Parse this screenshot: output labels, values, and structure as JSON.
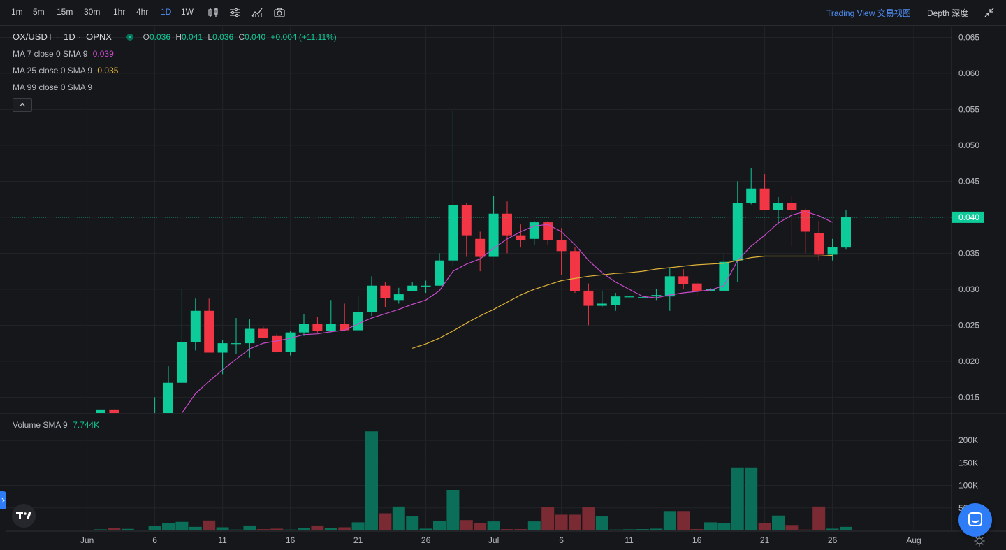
{
  "toolbar": {
    "timeframes": [
      "1m",
      "5m",
      "15m",
      "30m",
      "1hr",
      "4hr",
      "1D",
      "1W"
    ],
    "active_timeframe": "1D",
    "trading_view_label": "Trading View 交易视图",
    "depth_label": "Depth 深度",
    "icons": [
      "candle-type-icon",
      "indicators-icon",
      "studies-icon",
      "camera-icon"
    ]
  },
  "legend": {
    "symbol": "OX/USDT",
    "interval": "1D",
    "exchange": "OPNX",
    "open_label": "O",
    "open": "0.036",
    "high_label": "H",
    "high": "0.041",
    "low_label": "L",
    "low": "0.036",
    "close_label": "C",
    "close": "0.040",
    "change": "+0.004 (+11.11%)",
    "ma7_label": "MA 7 close 0 SMA 9",
    "ma7_value": "0.039",
    "ma25_label": "MA 25 close 0 SMA 9",
    "ma25_value": "0.035",
    "ma99_label": "MA 99 close 0 SMA 9",
    "volume_label": "Volume SMA 9",
    "volume_value": "7.744K"
  },
  "colors": {
    "up": "#0ecb9a",
    "down": "#f23645",
    "vol_up": "#0a6e58",
    "vol_down": "#7a2a33",
    "ma7": "#c64ac9",
    "ma25": "#e0b33a",
    "accent": "#4f8ef7",
    "bg": "#16171a",
    "grid": "#222428"
  },
  "chart_data": {
    "type": "candlestick",
    "price_axis_ticks": [
      "0.065",
      "0.060",
      "0.055",
      "0.050",
      "0.045",
      "0.040",
      "0.035",
      "0.030",
      "0.025",
      "0.020",
      "0.015"
    ],
    "price_ylim": [
      0.0128,
      0.0665
    ],
    "last_price_label": "0.040",
    "volume_axis_ticks": [
      "200K",
      "150K",
      "100K",
      "50K"
    ],
    "volume_ylim": [
      0,
      225000
    ],
    "x_labels": [
      {
        "i": -1,
        "label": "Jun"
      },
      {
        "i": 4,
        "label": "6"
      },
      {
        "i": 9,
        "label": "11"
      },
      {
        "i": 14,
        "label": "16"
      },
      {
        "i": 19,
        "label": "21"
      },
      {
        "i": 24,
        "label": "26"
      },
      {
        "i": 29,
        "label": "Jul"
      },
      {
        "i": 34,
        "label": "6"
      },
      {
        "i": 39,
        "label": "11"
      },
      {
        "i": 44,
        "label": "16"
      },
      {
        "i": 49,
        "label": "21"
      },
      {
        "i": 54,
        "label": "26"
      },
      {
        "i": 60,
        "label": "Aug"
      }
    ],
    "candles": [
      {
        "o": 0.0128,
        "h": 0.0133,
        "l": 0.0128,
        "c": 0.0133,
        "v": 2500
      },
      {
        "o": 0.0133,
        "h": 0.0133,
        "l": 0.0128,
        "c": 0.0128,
        "v": 5000
      },
      {
        "o": 0.0128,
        "h": 0.0128,
        "l": 0.0128,
        "c": 0.0128,
        "v": 3500
      },
      {
        "o": 0.0128,
        "h": 0.0128,
        "l": 0.0128,
        "c": 0.0128,
        "v": 1500
      },
      {
        "o": 0.0128,
        "h": 0.015,
        "l": 0.0128,
        "c": 0.0128,
        "v": 10000
      },
      {
        "o": 0.0128,
        "h": 0.0193,
        "l": 0.0128,
        "c": 0.017,
        "v": 16000
      },
      {
        "o": 0.017,
        "h": 0.03,
        "l": 0.017,
        "c": 0.0227,
        "v": 19000
      },
      {
        "o": 0.0227,
        "h": 0.0287,
        "l": 0.0215,
        "c": 0.027,
        "v": 8000
      },
      {
        "o": 0.027,
        "h": 0.0287,
        "l": 0.0212,
        "c": 0.0212,
        "v": 22000
      },
      {
        "o": 0.0212,
        "h": 0.023,
        "l": 0.0182,
        "c": 0.0225,
        "v": 7000
      },
      {
        "o": 0.0225,
        "h": 0.026,
        "l": 0.021,
        "c": 0.0225,
        "v": 2000
      },
      {
        "o": 0.0225,
        "h": 0.0258,
        "l": 0.0205,
        "c": 0.0245,
        "v": 11000
      },
      {
        "o": 0.0245,
        "h": 0.0248,
        "l": 0.0232,
        "c": 0.0232,
        "v": 3000
      },
      {
        "o": 0.0235,
        "h": 0.0238,
        "l": 0.0212,
        "c": 0.0213,
        "v": 4000
      },
      {
        "o": 0.0213,
        "h": 0.0242,
        "l": 0.0208,
        "c": 0.024,
        "v": 2000
      },
      {
        "o": 0.024,
        "h": 0.0265,
        "l": 0.0235,
        "c": 0.0252,
        "v": 6000
      },
      {
        "o": 0.0252,
        "h": 0.0262,
        "l": 0.024,
        "c": 0.0242,
        "v": 11000
      },
      {
        "o": 0.0242,
        "h": 0.0285,
        "l": 0.024,
        "c": 0.0252,
        "v": 5000
      },
      {
        "o": 0.0252,
        "h": 0.028,
        "l": 0.0242,
        "c": 0.0243,
        "v": 7000
      },
      {
        "o": 0.0243,
        "h": 0.029,
        "l": 0.0243,
        "c": 0.0268,
        "v": 18000
      },
      {
        "o": 0.0268,
        "h": 0.0318,
        "l": 0.0263,
        "c": 0.0305,
        "v": 220000
      },
      {
        "o": 0.0305,
        "h": 0.031,
        "l": 0.0275,
        "c": 0.0288,
        "v": 38000
      },
      {
        "o": 0.0285,
        "h": 0.0302,
        "l": 0.028,
        "c": 0.0293,
        "v": 53000
      },
      {
        "o": 0.0297,
        "h": 0.031,
        "l": 0.0297,
        "c": 0.0305,
        "v": 31000
      },
      {
        "o": 0.0305,
        "h": 0.0312,
        "l": 0.0295,
        "c": 0.0305,
        "v": 4000
      },
      {
        "o": 0.0305,
        "h": 0.035,
        "l": 0.0305,
        "c": 0.034,
        "v": 21000
      },
      {
        "o": 0.034,
        "h": 0.0548,
        "l": 0.0333,
        "c": 0.0417,
        "v": 90000
      },
      {
        "o": 0.0417,
        "h": 0.042,
        "l": 0.0345,
        "c": 0.0375,
        "v": 23000
      },
      {
        "o": 0.037,
        "h": 0.038,
        "l": 0.0325,
        "c": 0.0345,
        "v": 16000
      },
      {
        "o": 0.0345,
        "h": 0.043,
        "l": 0.0345,
        "c": 0.0405,
        "v": 20000
      },
      {
        "o": 0.0405,
        "h": 0.0422,
        "l": 0.035,
        "c": 0.0375,
        "v": 3000
      },
      {
        "o": 0.0375,
        "h": 0.039,
        "l": 0.0358,
        "c": 0.0368,
        "v": 3000
      },
      {
        "o": 0.037,
        "h": 0.0395,
        "l": 0.0362,
        "c": 0.0393,
        "v": 20000
      },
      {
        "o": 0.0393,
        "h": 0.0395,
        "l": 0.0362,
        "c": 0.0368,
        "v": 52000
      },
      {
        "o": 0.0368,
        "h": 0.0385,
        "l": 0.032,
        "c": 0.0353,
        "v": 35000
      },
      {
        "o": 0.0353,
        "h": 0.0358,
        "l": 0.0295,
        "c": 0.0297,
        "v": 35000
      },
      {
        "o": 0.0298,
        "h": 0.0308,
        "l": 0.025,
        "c": 0.0277,
        "v": 52000
      },
      {
        "o": 0.0277,
        "h": 0.0298,
        "l": 0.0275,
        "c": 0.028,
        "v": 31000
      },
      {
        "o": 0.0278,
        "h": 0.0295,
        "l": 0.027,
        "c": 0.029,
        "v": 2000
      },
      {
        "o": 0.0289,
        "h": 0.029,
        "l": 0.0288,
        "c": 0.029,
        "v": 2500
      },
      {
        "o": 0.0288,
        "h": 0.029,
        "l": 0.0288,
        "c": 0.0289,
        "v": 3000
      },
      {
        "o": 0.029,
        "h": 0.03,
        "l": 0.0285,
        "c": 0.0292,
        "v": 4000
      },
      {
        "o": 0.029,
        "h": 0.033,
        "l": 0.027,
        "c": 0.0318,
        "v": 43000
      },
      {
        "o": 0.0318,
        "h": 0.0328,
        "l": 0.03,
        "c": 0.0307,
        "v": 43000
      },
      {
        "o": 0.0308,
        "h": 0.031,
        "l": 0.029,
        "c": 0.0298,
        "v": 3000
      },
      {
        "o": 0.0298,
        "h": 0.0302,
        "l": 0.0298,
        "c": 0.03,
        "v": 18000
      },
      {
        "o": 0.0298,
        "h": 0.035,
        "l": 0.0298,
        "c": 0.0338,
        "v": 17000
      },
      {
        "o": 0.034,
        "h": 0.045,
        "l": 0.031,
        "c": 0.042,
        "v": 140000
      },
      {
        "o": 0.042,
        "h": 0.0468,
        "l": 0.0418,
        "c": 0.044,
        "v": 140000
      },
      {
        "o": 0.044,
        "h": 0.046,
        "l": 0.041,
        "c": 0.041,
        "v": 16000
      },
      {
        "o": 0.041,
        "h": 0.0428,
        "l": 0.039,
        "c": 0.042,
        "v": 33000
      },
      {
        "o": 0.042,
        "h": 0.043,
        "l": 0.036,
        "c": 0.041,
        "v": 12000
      },
      {
        "o": 0.041,
        "h": 0.0412,
        "l": 0.035,
        "c": 0.038,
        "v": 2000
      },
      {
        "o": 0.0378,
        "h": 0.0395,
        "l": 0.034,
        "c": 0.0348,
        "v": 53000
      },
      {
        "o": 0.0348,
        "h": 0.037,
        "l": 0.034,
        "c": 0.0359,
        "v": 4000
      },
      {
        "o": 0.0358,
        "h": 0.041,
        "l": 0.0355,
        "c": 0.04,
        "v": 8000
      }
    ],
    "ma7": [
      [
        6,
        0.0128
      ],
      [
        7,
        0.0155
      ],
      [
        8,
        0.0172
      ],
      [
        9,
        0.0188
      ],
      [
        10,
        0.0203
      ],
      [
        11,
        0.0217
      ],
      [
        12,
        0.0225
      ],
      [
        13,
        0.0228
      ],
      [
        14,
        0.0232
      ],
      [
        15,
        0.0237
      ],
      [
        16,
        0.0238
      ],
      [
        17,
        0.0241
      ],
      [
        18,
        0.0243
      ],
      [
        19,
        0.0252
      ],
      [
        20,
        0.026
      ],
      [
        21,
        0.0266
      ],
      [
        22,
        0.0272
      ],
      [
        23,
        0.0279
      ],
      [
        24,
        0.0285
      ],
      [
        25,
        0.0298
      ],
      [
        26,
        0.0325
      ],
      [
        27,
        0.0335
      ],
      [
        28,
        0.0342
      ],
      [
        29,
        0.0357
      ],
      [
        30,
        0.037
      ],
      [
        31,
        0.038
      ],
      [
        32,
        0.0388
      ],
      [
        33,
        0.039
      ],
      [
        34,
        0.038
      ],
      [
        35,
        0.0362
      ],
      [
        36,
        0.034
      ],
      [
        37,
        0.0323
      ],
      [
        38,
        0.031
      ],
      [
        39,
        0.03
      ],
      [
        40,
        0.029
      ],
      [
        41,
        0.0288
      ],
      [
        42,
        0.0292
      ],
      [
        43,
        0.0295
      ],
      [
        44,
        0.0297
      ],
      [
        45,
        0.0299
      ],
      [
        46,
        0.0305
      ],
      [
        47,
        0.034
      ],
      [
        48,
        0.036
      ],
      [
        49,
        0.0375
      ],
      [
        50,
        0.0392
      ],
      [
        51,
        0.0403
      ],
      [
        52,
        0.0408
      ],
      [
        53,
        0.0402
      ],
      [
        54,
        0.0393
      ]
    ],
    "ma25": [
      [
        23,
        0.0218
      ],
      [
        24,
        0.0224
      ],
      [
        25,
        0.0232
      ],
      [
        26,
        0.0242
      ],
      [
        27,
        0.0253
      ],
      [
        28,
        0.0263
      ],
      [
        29,
        0.0272
      ],
      [
        30,
        0.0282
      ],
      [
        31,
        0.0292
      ],
      [
        32,
        0.03
      ],
      [
        33,
        0.0306
      ],
      [
        34,
        0.0312
      ],
      [
        35,
        0.0315
      ],
      [
        36,
        0.0318
      ],
      [
        37,
        0.032
      ],
      [
        38,
        0.0322
      ],
      [
        39,
        0.0323
      ],
      [
        40,
        0.0325
      ],
      [
        41,
        0.0328
      ],
      [
        42,
        0.033
      ],
      [
        43,
        0.0332
      ],
      [
        44,
        0.0334
      ],
      [
        45,
        0.0335
      ],
      [
        46,
        0.0336
      ],
      [
        47,
        0.034
      ],
      [
        48,
        0.0344
      ],
      [
        49,
        0.0346
      ],
      [
        50,
        0.0346
      ],
      [
        51,
        0.0346
      ],
      [
        52,
        0.0346
      ],
      [
        53,
        0.0346
      ],
      [
        54,
        0.0347
      ]
    ]
  }
}
